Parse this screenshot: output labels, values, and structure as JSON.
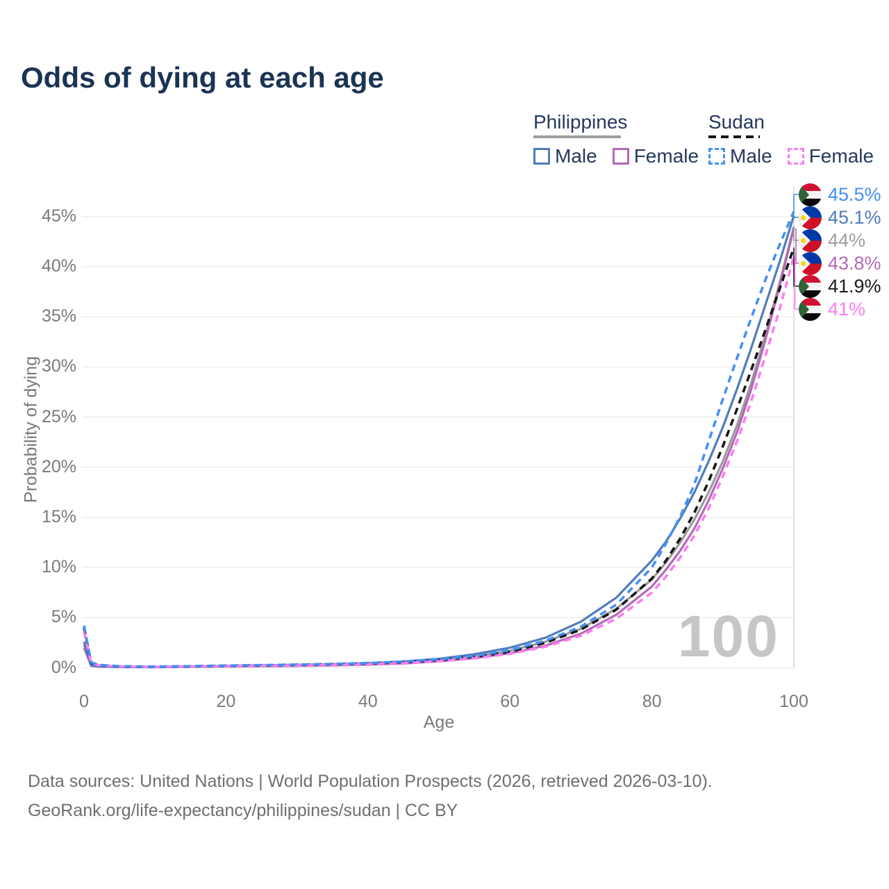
{
  "title": "Odds of dying at each age",
  "legend": {
    "groups": [
      {
        "name": "Philippines",
        "line_style": "solid",
        "underline_color": "#9e9e9e",
        "items": [
          {
            "label": "Male",
            "color": "#4f7cba",
            "dashed": false
          },
          {
            "label": "Female",
            "color": "#b26ab5",
            "dashed": false
          }
        ]
      },
      {
        "name": "Sudan",
        "line_style": "dashed",
        "underline_color": "#161616",
        "items": [
          {
            "label": "Male",
            "color": "#4490f7",
            "dashed": true
          },
          {
            "label": "Female",
            "color": "#fc7df2",
            "dashed": true
          }
        ]
      }
    ]
  },
  "axes": {
    "y_title": "Probability of dying",
    "x_title": "Age",
    "y_ticks": [
      {
        "label": "0%",
        "value": 0
      },
      {
        "label": "5%",
        "value": 5
      },
      {
        "label": "10%",
        "value": 10
      },
      {
        "label": "15%",
        "value": 15
      },
      {
        "label": "20%",
        "value": 20
      },
      {
        "label": "25%",
        "value": 25
      },
      {
        "label": "30%",
        "value": 30
      },
      {
        "label": "35%",
        "value": 35
      },
      {
        "label": "40%",
        "value": 40
      },
      {
        "label": "45%",
        "value": 45
      }
    ],
    "x_ticks": [
      {
        "label": "0",
        "value": 0
      },
      {
        "label": "20",
        "value": 20
      },
      {
        "label": "40",
        "value": 40
      },
      {
        "label": "60",
        "value": 60
      },
      {
        "label": "80",
        "value": 80
      },
      {
        "label": "100",
        "value": 100
      }
    ]
  },
  "hover_age_label": "100",
  "end_labels": [
    {
      "value": "45.5%",
      "flag": "sudan",
      "color": "#4490f7",
      "series": "sudan_male"
    },
    {
      "value": "45.1%",
      "flag": "philippines",
      "color": "#4f7cba",
      "series": "philippines_male"
    },
    {
      "value": "44%",
      "flag": "philippines",
      "color": "#9e9e9e",
      "series": "philippines_all"
    },
    {
      "value": "43.8%",
      "flag": "philippines",
      "color": "#b26ab5",
      "series": "philippines_female"
    },
    {
      "value": "41.9%",
      "flag": "sudan",
      "color": "#1a1a1a",
      "series": "sudan_all"
    },
    {
      "value": "41%",
      "flag": "sudan",
      "color": "#fc7df2",
      "series": "sudan_female"
    }
  ],
  "footer": {
    "line1": "Data sources: United Nations | World Population Prospects (2026, retrieved 2026-03-10).",
    "line2": "GeoRank.org/life-expectancy/philippines/sudan | CC BY"
  },
  "chart_data": {
    "type": "line",
    "title": "Odds of dying at each age",
    "xlabel": "Age",
    "ylabel": "Probability of dying",
    "xlim": [
      0,
      100
    ],
    "ylim": [
      0,
      47
    ],
    "grid": "horizontal",
    "legend_position": "top-right",
    "x": [
      0,
      1,
      2,
      5,
      10,
      15,
      20,
      25,
      30,
      35,
      40,
      45,
      50,
      55,
      60,
      65,
      70,
      75,
      80,
      82,
      84,
      86,
      88,
      90,
      92,
      94,
      96,
      98,
      100
    ],
    "series": [
      {
        "id": "philippines_all",
        "name": "Philippines (all)",
        "country": "Philippines",
        "sex": "all",
        "color": "#9b9b9b",
        "dashed": false,
        "end_value_pct": 44.0,
        "values": [
          2.3,
          0.22,
          0.13,
          0.08,
          0.07,
          0.11,
          0.16,
          0.2,
          0.24,
          0.3,
          0.38,
          0.52,
          0.76,
          1.15,
          1.7,
          2.6,
          3.9,
          5.9,
          8.8,
          10.5,
          12.5,
          14.8,
          17.5,
          20.6,
          24.2,
          28.4,
          33.2,
          38.4,
          44.0
        ]
      },
      {
        "id": "philippines_female",
        "name": "Philippines Female",
        "country": "Philippines",
        "sex": "female",
        "color": "#b26ab5",
        "dashed": false,
        "end_value_pct": 43.8,
        "values": [
          2.0,
          0.2,
          0.12,
          0.07,
          0.06,
          0.09,
          0.13,
          0.16,
          0.19,
          0.24,
          0.31,
          0.43,
          0.64,
          0.97,
          1.45,
          2.2,
          3.4,
          5.3,
          8.1,
          9.8,
          11.7,
          13.9,
          16.7,
          19.9,
          23.5,
          27.8,
          32.7,
          38.1,
          43.8
        ]
      },
      {
        "id": "philippines_male",
        "name": "Philippines Male",
        "country": "Philippines",
        "sex": "male",
        "color": "#4f7cba",
        "dashed": false,
        "end_value_pct": 45.1,
        "values": [
          2.6,
          0.25,
          0.15,
          0.09,
          0.08,
          0.13,
          0.2,
          0.25,
          0.3,
          0.36,
          0.45,
          0.62,
          0.9,
          1.35,
          2.0,
          3.0,
          4.6,
          7.0,
          10.7,
          12.6,
          14.9,
          17.5,
          20.6,
          24.0,
          27.8,
          31.9,
          36.2,
          40.5,
          45.1
        ]
      },
      {
        "id": "sudan_all",
        "name": "Sudan (all)",
        "country": "Sudan",
        "sex": "all",
        "color": "#161616",
        "dashed": true,
        "end_value_pct": 41.9,
        "values": [
          4.0,
          0.5,
          0.28,
          0.14,
          0.11,
          0.15,
          0.2,
          0.25,
          0.3,
          0.36,
          0.44,
          0.57,
          0.78,
          1.1,
          1.6,
          2.5,
          3.8,
          5.8,
          8.9,
          10.7,
          12.9,
          15.5,
          18.6,
          22.1,
          25.8,
          29.7,
          33.7,
          37.8,
          41.9
        ]
      },
      {
        "id": "sudan_female",
        "name": "Sudan Female",
        "country": "Sudan",
        "sex": "female",
        "color": "#fc7df2",
        "dashed": true,
        "end_value_pct": 41.0,
        "values": [
          3.6,
          0.45,
          0.25,
          0.12,
          0.1,
          0.13,
          0.17,
          0.21,
          0.25,
          0.3,
          0.37,
          0.48,
          0.66,
          0.95,
          1.4,
          2.1,
          3.2,
          4.9,
          7.5,
          9.1,
          11.0,
          13.2,
          15.9,
          19.1,
          22.6,
          26.6,
          31.1,
          35.8,
          41.0
        ]
      },
      {
        "id": "sudan_male",
        "name": "Sudan Male",
        "country": "Sudan",
        "sex": "male",
        "color": "#4490f7",
        "dashed": true,
        "end_value_pct": 45.5,
        "values": [
          4.2,
          0.55,
          0.3,
          0.15,
          0.12,
          0.16,
          0.22,
          0.27,
          0.32,
          0.38,
          0.47,
          0.62,
          0.85,
          1.2,
          1.75,
          2.7,
          4.1,
          6.3,
          10.0,
          12.4,
          15.1,
          18.3,
          22.6,
          26.8,
          30.9,
          34.9,
          38.7,
          42.2,
          45.5
        ]
      }
    ]
  }
}
